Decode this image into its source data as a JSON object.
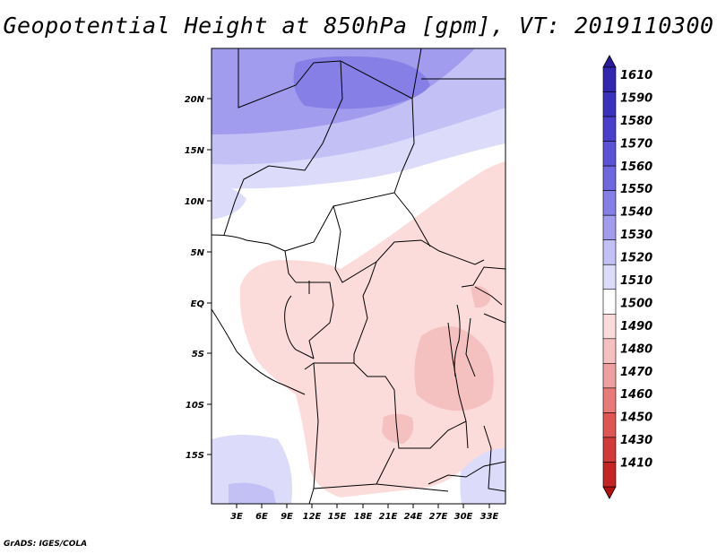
{
  "title": "Geopotential Height at 850hPa [gpm], VT: 2019110300",
  "footer": "GrADS: IGES/COLA",
  "map": {
    "region": "Central Africa",
    "lon_ticks": [
      "3E",
      "6E",
      "9E",
      "12E",
      "15E",
      "18E",
      "21E",
      "24E",
      "27E",
      "30E",
      "33E"
    ],
    "lat_ticks": [
      "20N",
      "15N",
      "10N",
      "5N",
      "EQ",
      "5S",
      "10S",
      "15S"
    ]
  },
  "colorbar": {
    "levels": [
      "1610",
      "1590",
      "1580",
      "1570",
      "1560",
      "1550",
      "1540",
      "1530",
      "1520",
      "1510",
      "1500",
      "1490",
      "1480",
      "1470",
      "1460",
      "1450",
      "1430",
      "1410"
    ],
    "colors": [
      "#2a1a9c",
      "#3225b0",
      "#3a31bf",
      "#4a3fcc",
      "#5b52d8",
      "#6f67e0",
      "#857fe6",
      "#a19cee",
      "#c2c0f5",
      "#dcdbfa",
      "#ffffff",
      "#fbdcdb",
      "#f5c1c0",
      "#ef9f9e",
      "#e87a79",
      "#df5553",
      "#d23a38",
      "#c42522",
      "#b0110e"
    ]
  }
}
